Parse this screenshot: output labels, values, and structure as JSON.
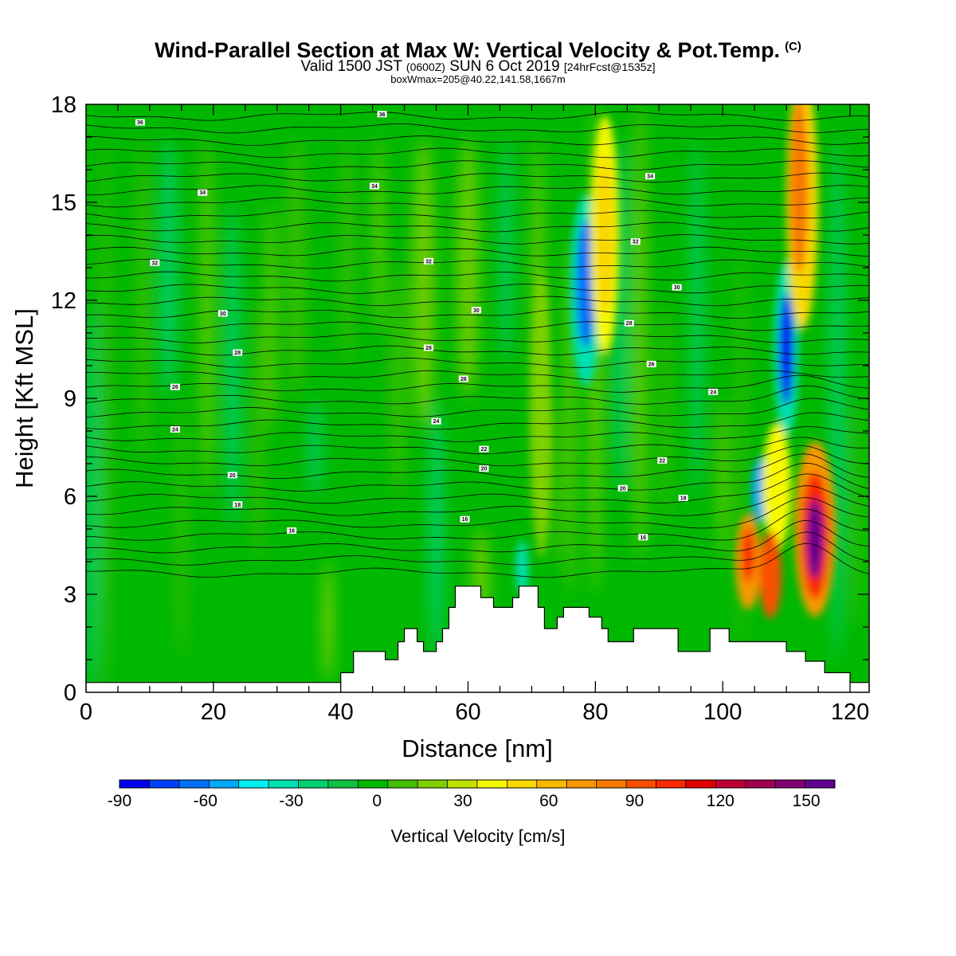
{
  "title": "Wind-Parallel Section at Max W: Vertical Velocity & Pot.Temp.",
  "copyright_mark": "(C)",
  "subtitle_valid": "Valid 1500 JST",
  "subtitle_z": "(0600Z)",
  "subtitle_date": "SUN 6 Oct 2019",
  "subtitle_fcst": "[24hrFcst@1535z]",
  "box_info": "boxWmax=205@40.22,141.58,1667m",
  "chart_data": {
    "type": "heatmap",
    "xlabel": "Distance [nm]",
    "ylabel": "Height [Kft MSL]",
    "xlim": [
      0,
      123
    ],
    "ylim": [
      0,
      18
    ],
    "x_ticks": [
      0,
      20,
      40,
      60,
      80,
      100,
      120
    ],
    "y_ticks": [
      0,
      3,
      6,
      9,
      12,
      15,
      18
    ],
    "colorbar": {
      "label": "Vertical Velocity [cm/s]",
      "range": [
        -90,
        160
      ],
      "tick_values": [
        -90,
        -60,
        -30,
        0,
        30,
        60,
        90,
        120,
        150
      ],
      "tick_labels": [
        "-90",
        "-60",
        "-30",
        "0",
        "30",
        "60",
        "90",
        "120",
        "150"
      ],
      "colors": [
        "#0000f0",
        "#0040f8",
        "#0070f8",
        "#00a8f8",
        "#00f0f0",
        "#00e0b0",
        "#00d070",
        "#10c040",
        "#00b800",
        "#40c000",
        "#80d000",
        "#c0e000",
        "#f8f800",
        "#f8d800",
        "#f8b800",
        "#f89800",
        "#f87800",
        "#f85000",
        "#f82800",
        "#e00000",
        "#c00030",
        "#a00050",
        "#800070",
        "#600090"
      ]
    },
    "terrain": [
      [
        0,
        0.3
      ],
      [
        40,
        0.3
      ],
      [
        40,
        0.6
      ],
      [
        42,
        0.6
      ],
      [
        42,
        1.25
      ],
      [
        47,
        1.25
      ],
      [
        47,
        1.0
      ],
      [
        49,
        1.0
      ],
      [
        49,
        1.55
      ],
      [
        50,
        1.55
      ],
      [
        50,
        1.95
      ],
      [
        52,
        1.95
      ],
      [
        52,
        1.55
      ],
      [
        53,
        1.55
      ],
      [
        53,
        1.25
      ],
      [
        55,
        1.25
      ],
      [
        55,
        1.55
      ],
      [
        56,
        1.55
      ],
      [
        56,
        1.95
      ],
      [
        57,
        1.95
      ],
      [
        57,
        2.6
      ],
      [
        58,
        2.6
      ],
      [
        58,
        3.25
      ],
      [
        62,
        3.25
      ],
      [
        62,
        2.9
      ],
      [
        64,
        2.9
      ],
      [
        64,
        2.6
      ],
      [
        67,
        2.6
      ],
      [
        67,
        2.9
      ],
      [
        68,
        2.9
      ],
      [
        68,
        3.25
      ],
      [
        71,
        3.25
      ],
      [
        71,
        2.6
      ],
      [
        72,
        2.6
      ],
      [
        72,
        1.95
      ],
      [
        74,
        1.95
      ],
      [
        74,
        2.3
      ],
      [
        75,
        2.3
      ],
      [
        75,
        2.6
      ],
      [
        79,
        2.6
      ],
      [
        79,
        2.3
      ],
      [
        81,
        2.3
      ],
      [
        81,
        1.95
      ],
      [
        82,
        1.95
      ],
      [
        82,
        1.55
      ],
      [
        86,
        1.55
      ],
      [
        86,
        1.95
      ],
      [
        93,
        1.95
      ],
      [
        93,
        1.25
      ],
      [
        98,
        1.25
      ],
      [
        98,
        1.95
      ],
      [
        101,
        1.95
      ],
      [
        101,
        1.55
      ],
      [
        110,
        1.55
      ],
      [
        110,
        1.25
      ],
      [
        113,
        1.25
      ],
      [
        113,
        0.95
      ],
      [
        116,
        0.95
      ],
      [
        116,
        0.6
      ],
      [
        120,
        0.6
      ],
      [
        120,
        0.3
      ],
      [
        123,
        0.3
      ]
    ],
    "theta_contour_labels": [
      {
        "x": 8.5,
        "y": 17.45,
        "text": "36"
      },
      {
        "x": 46.5,
        "y": 17.7,
        "text": "36"
      },
      {
        "x": 18.3,
        "y": 15.3,
        "text": "34"
      },
      {
        "x": 45.3,
        "y": 15.5,
        "text": "34"
      },
      {
        "x": 88.6,
        "y": 15.8,
        "text": "34"
      },
      {
        "x": 10.8,
        "y": 13.15,
        "text": "32"
      },
      {
        "x": 53.8,
        "y": 13.2,
        "text": "32"
      },
      {
        "x": 86.3,
        "y": 13.8,
        "text": "32"
      },
      {
        "x": 21.5,
        "y": 11.6,
        "text": "30"
      },
      {
        "x": 61.3,
        "y": 11.7,
        "text": "30"
      },
      {
        "x": 92.8,
        "y": 12.4,
        "text": "30"
      },
      {
        "x": 23.8,
        "y": 10.4,
        "text": "28"
      },
      {
        "x": 53.8,
        "y": 10.55,
        "text": "28"
      },
      {
        "x": 85.3,
        "y": 11.3,
        "text": "28"
      },
      {
        "x": 14.0,
        "y": 9.35,
        "text": "26"
      },
      {
        "x": 59.3,
        "y": 9.6,
        "text": "26"
      },
      {
        "x": 88.8,
        "y": 10.05,
        "text": "26"
      },
      {
        "x": 14.0,
        "y": 8.05,
        "text": "24"
      },
      {
        "x": 55.0,
        "y": 8.3,
        "text": "24"
      },
      {
        "x": 98.5,
        "y": 9.2,
        "text": "24"
      },
      {
        "x": 62.5,
        "y": 7.45,
        "text": "22"
      },
      {
        "x": 90.5,
        "y": 7.1,
        "text": "22"
      },
      {
        "x": 23.0,
        "y": 6.65,
        "text": "20"
      },
      {
        "x": 62.5,
        "y": 6.85,
        "text": "20"
      },
      {
        "x": 84.3,
        "y": 6.25,
        "text": "20"
      },
      {
        "x": 23.8,
        "y": 5.75,
        "text": "18"
      },
      {
        "x": 93.8,
        "y": 5.95,
        "text": "18"
      },
      {
        "x": 32.3,
        "y": 4.95,
        "text": "16"
      },
      {
        "x": 59.5,
        "y": 5.3,
        "text": "16"
      },
      {
        "x": 87.5,
        "y": 4.75,
        "text": "16"
      }
    ],
    "updraft_features": [
      {
        "x": 114.5,
        "y": 4.8,
        "w_cm_s": 155
      },
      {
        "x": 111.5,
        "y": 15.5,
        "w_cm_s": 80
      },
      {
        "x": 79.5,
        "y": 14.0,
        "w_cm_s": 45
      }
    ],
    "downdraft_features": [
      {
        "x": 110.0,
        "y": 10.5,
        "w_cm_s": -80
      },
      {
        "x": 78.5,
        "y": 12.5,
        "w_cm_s": -60
      },
      {
        "x": 106.0,
        "y": 6.0,
        "w_cm_s": -55
      },
      {
        "x": 68.5,
        "y": 4.0,
        "w_cm_s": -35
      }
    ]
  }
}
